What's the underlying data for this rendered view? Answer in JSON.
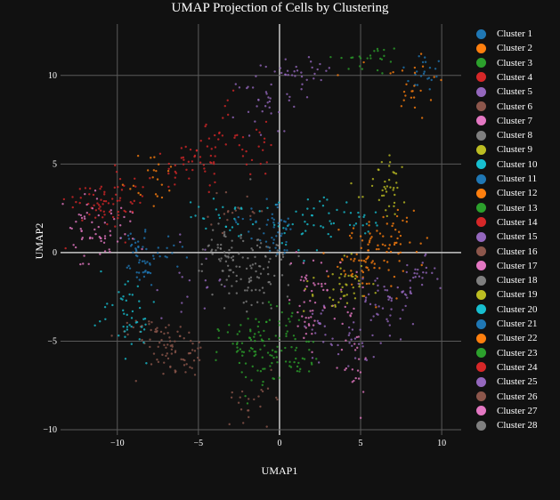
{
  "chart_data": {
    "type": "scatter",
    "title": "UMAP Projection of Cells by Clustering",
    "xlabel": "UMAP1",
    "ylabel": "UMAP2",
    "xlim": [
      -13.5,
      11.2
    ],
    "ylim": [
      -10.3,
      12.9
    ],
    "x_ticks": [
      "−10",
      "−5",
      "0",
      "5",
      "10"
    ],
    "y_ticks": [
      "−10",
      "−5",
      "0",
      "5",
      "10"
    ],
    "x_tick_values": [
      -10,
      -5,
      0,
      5,
      10
    ],
    "y_tick_values": [
      -10,
      -5,
      0,
      5,
      10
    ],
    "grid": true,
    "legend_position": "right",
    "series": [
      {
        "name": "Cluster 1",
        "color": "#1f77b4",
        "centers": [
          [
            -9.0,
            0.6
          ],
          [
            9.0,
            10.2
          ]
        ]
      },
      {
        "name": "Cluster 2",
        "color": "#ff7f0e",
        "centers": [
          [
            6.5,
            0.7
          ],
          [
            -8.0,
            4.2
          ],
          [
            8.0,
            9.5
          ]
        ]
      },
      {
        "name": "Cluster 3",
        "color": "#2ca02c",
        "centers": [
          [
            -1.0,
            -6.6
          ],
          [
            5.5,
            10.9
          ],
          [
            1.5,
            -5.9
          ]
        ]
      },
      {
        "name": "Cluster 4",
        "color": "#d62728",
        "centers": [
          [
            -11.5,
            2.8
          ],
          [
            -6.0,
            4.8
          ],
          [
            -3.5,
            6.9
          ]
        ]
      },
      {
        "name": "Cluster 5",
        "color": "#9467bd",
        "centers": [
          [
            -1.5,
            8.4
          ],
          [
            4.5,
            -4.9
          ],
          [
            2.0,
            10.2
          ]
        ]
      },
      {
        "name": "Cluster 6",
        "color": "#8c564b",
        "centers": [
          [
            -7.0,
            -5.0
          ],
          [
            -2.5,
            2.3
          ]
        ]
      },
      {
        "name": "Cluster 7",
        "color": "#e377c2",
        "centers": [
          [
            3.0,
            -2.6
          ],
          [
            -10.5,
            1.0
          ],
          [
            4.5,
            -6.2
          ]
        ]
      },
      {
        "name": "Cluster 8",
        "color": "#7f7f7f",
        "centers": [
          [
            -2.5,
            -0.6
          ],
          [
            -1.5,
            -2.2
          ]
        ]
      },
      {
        "name": "Cluster 9",
        "color": "#bcbd22",
        "centers": [
          [
            7.0,
            4.2
          ],
          [
            4.5,
            -1.6
          ]
        ]
      },
      {
        "name": "Cluster 10",
        "color": "#17becf",
        "centers": [
          [
            2.5,
            1.7
          ],
          [
            -9.5,
            -3.0
          ],
          [
            -3.5,
            2.1
          ]
        ]
      },
      {
        "name": "Cluster 11",
        "color": "#1f77b4",
        "centers": [
          [
            -7.5,
            0.0
          ],
          [
            -1.0,
            1.8
          ]
        ]
      },
      {
        "name": "Cluster 12",
        "color": "#ff7f0e",
        "centers": [
          [
            5.5,
            -0.6
          ],
          [
            7.5,
            1.0
          ]
        ]
      },
      {
        "name": "Cluster 13",
        "color": "#2ca02c",
        "centers": [
          [
            0.5,
            -4.6
          ],
          [
            -2.5,
            -5.7
          ]
        ]
      },
      {
        "name": "Cluster 14",
        "color": "#d62728",
        "centers": [
          [
            -10.5,
            2.4
          ],
          [
            -1.5,
            5.7
          ]
        ]
      },
      {
        "name": "Cluster 15",
        "color": "#9467bd",
        "centers": [
          [
            6.5,
            -3.2
          ],
          [
            -5.0,
            -1.6
          ],
          [
            8.5,
            -1.2
          ]
        ]
      },
      {
        "name": "Cluster 16",
        "color": "#8c564b",
        "centers": [
          [
            -8.0,
            -4.5
          ],
          [
            -5.5,
            -5.8
          ]
        ]
      },
      {
        "name": "Cluster 17",
        "color": "#e377c2",
        "centers": [
          [
            1.5,
            -3.6
          ],
          [
            -12.0,
            1.8
          ]
        ]
      },
      {
        "name": "Cluster 18",
        "color": "#7f7f7f",
        "centers": [
          [
            -3.0,
            0.4
          ],
          [
            -0.5,
            -0.2
          ]
        ]
      },
      {
        "name": "Cluster 19",
        "color": "#bcbd22",
        "centers": [
          [
            6.5,
            3.1
          ],
          [
            3.5,
            -2.1
          ]
        ]
      },
      {
        "name": "Cluster 20",
        "color": "#17becf",
        "centers": [
          [
            0.5,
            1.2
          ],
          [
            -9.0,
            -4.2
          ],
          [
            5.0,
            1.9
          ]
        ]
      },
      {
        "name": "Cluster 21",
        "color": "#1f77b4",
        "centers": [
          [
            -8.5,
            -1.1
          ],
          [
            0.0,
            0.9
          ]
        ]
      },
      {
        "name": "Cluster 22",
        "color": "#ff7f0e",
        "centers": [
          [
            4.5,
            0.1
          ],
          [
            6.5,
            -1.1
          ]
        ]
      },
      {
        "name": "Cluster 23",
        "color": "#2ca02c",
        "centers": [
          [
            -0.5,
            -5.2
          ],
          [
            -2.0,
            -4.2
          ]
        ]
      },
      {
        "name": "Cluster 24",
        "color": "#d62728",
        "centers": [
          [
            -9.5,
            3.6
          ],
          [
            -4.5,
            5.2
          ]
        ]
      },
      {
        "name": "Cluster 25",
        "color": "#9467bd",
        "centers": [
          [
            2.5,
            -4.1
          ],
          [
            0.5,
            9.1
          ],
          [
            7.0,
            -2.2
          ]
        ]
      },
      {
        "name": "Cluster 26",
        "color": "#8c564b",
        "centers": [
          [
            -6.5,
            -6.3
          ],
          [
            -1.5,
            -8.2
          ]
        ]
      },
      {
        "name": "Cluster 27",
        "color": "#e377c2",
        "centers": [
          [
            2.0,
            -1.6
          ],
          [
            -11.5,
            0.8
          ]
        ]
      },
      {
        "name": "Cluster 28",
        "color": "#7f7f7f",
        "centers": [
          [
            -2.0,
            -1.1
          ],
          [
            -3.5,
            -0.1
          ]
        ]
      }
    ]
  }
}
